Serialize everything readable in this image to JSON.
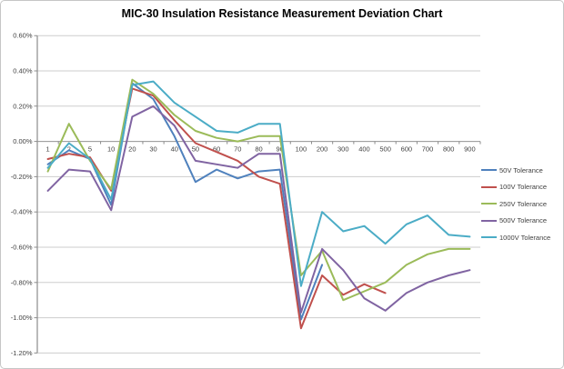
{
  "window": {
    "background": "#ffffff",
    "border_color": "#c6c6c6"
  },
  "colors": {
    "axis": "#8c8c8c",
    "gridline": "#cdcdcd",
    "zero_axis": "#999999",
    "label_text": "#3f3f3f",
    "title_text": "#000000"
  },
  "chart_data": {
    "type": "line",
    "title": "MIC-30 Insulation Resistance Measurement Deviation Chart",
    "categories": [
      "1",
      "2",
      "5",
      "10",
      "20",
      "30",
      "40",
      "50",
      "60",
      "70",
      "80",
      "90",
      "100",
      "200",
      "300",
      "400",
      "500",
      "600",
      "700",
      "800",
      "900"
    ],
    "y_axis": {
      "min": -1.2,
      "max": 0.6,
      "step": 0.2,
      "unit": "%",
      "tick_labels": [
        "0.60%",
        "0.40%",
        "0.20%",
        "0.00%",
        "-0.20%",
        "-0.40%",
        "-0.60%",
        "-0.80%",
        "-1.00%",
        "-1.20%"
      ]
    },
    "grid": true,
    "legend_position": "right",
    "series": [
      {
        "name": "50V Tolerance",
        "color": "#4F81BD",
        "values": [
          -0.13,
          -0.05,
          -0.1,
          -0.36,
          0.33,
          0.24,
          0.03,
          -0.23,
          -0.16,
          -0.21,
          -0.17,
          -0.16,
          -1.01,
          -0.7,
          null,
          null,
          null,
          null,
          null,
          null,
          null
        ]
      },
      {
        "name": "100V Tolerance",
        "color": "#C0504D",
        "values": [
          -0.1,
          -0.07,
          -0.09,
          -0.28,
          0.3,
          0.26,
          0.12,
          -0.01,
          -0.06,
          -0.11,
          -0.2,
          -0.24,
          -1.06,
          -0.76,
          -0.87,
          -0.81,
          -0.86,
          null,
          null,
          null,
          null
        ]
      },
      {
        "name": "250V Tolerance",
        "color": "#9BBB59",
        "values": [
          -0.17,
          0.1,
          -0.11,
          -0.27,
          0.35,
          0.27,
          0.15,
          0.06,
          0.02,
          0.0,
          0.03,
          0.03,
          -0.76,
          -0.62,
          -0.9,
          -0.85,
          -0.8,
          -0.7,
          -0.64,
          -0.61,
          -0.61
        ]
      },
      {
        "name": "500V Tolerance",
        "color": "#8064A2",
        "values": [
          -0.28,
          -0.16,
          -0.17,
          -0.39,
          0.14,
          0.2,
          0.09,
          -0.11,
          -0.13,
          -0.15,
          -0.07,
          -0.07,
          -0.97,
          -0.61,
          -0.73,
          -0.89,
          -0.96,
          -0.86,
          -0.8,
          -0.76,
          -0.73
        ]
      },
      {
        "name": "1000V Tolerance",
        "color": "#4BACC6",
        "values": [
          -0.15,
          -0.01,
          -0.1,
          -0.33,
          0.32,
          0.34,
          0.22,
          0.14,
          0.06,
          0.05,
          0.1,
          0.1,
          -0.82,
          -0.4,
          -0.51,
          -0.48,
          -0.58,
          -0.47,
          -0.42,
          -0.53,
          -0.54
        ]
      }
    ]
  }
}
